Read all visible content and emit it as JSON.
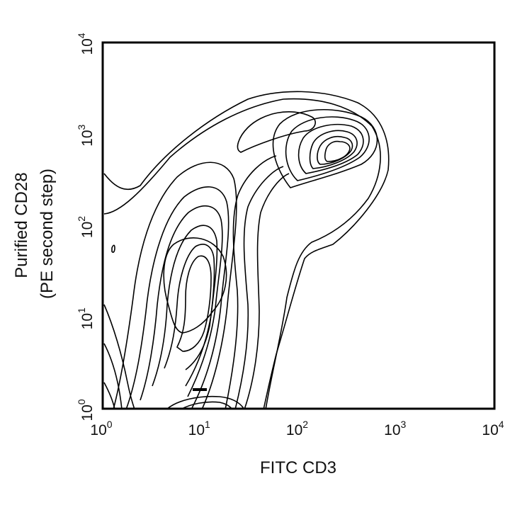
{
  "chart_data": {
    "type": "contour",
    "xlabel": "FITC CD3",
    "ylabel_line1": "Purified CD28",
    "ylabel_line2": "(PE second step)",
    "x_scale": "log",
    "y_scale": "log",
    "xlim": [
      1,
      10000
    ],
    "ylim": [
      1,
      10000
    ],
    "grid": false,
    "x_ticks": [
      {
        "base": "10",
        "exp": "0",
        "value": 1
      },
      {
        "base": "10",
        "exp": "1",
        "value": 10
      },
      {
        "base": "10",
        "exp": "2",
        "value": 100
      },
      {
        "base": "10",
        "exp": "3",
        "value": 1000
      },
      {
        "base": "10",
        "exp": "4",
        "value": 10000
      }
    ],
    "y_ticks": [
      {
        "base": "10",
        "exp": "0",
        "value": 1
      },
      {
        "base": "10",
        "exp": "1",
        "value": 10
      },
      {
        "base": "10",
        "exp": "2",
        "value": 100
      },
      {
        "base": "10",
        "exp": "3",
        "value": 1000
      },
      {
        "base": "10",
        "exp": "4",
        "value": 10000
      }
    ],
    "populations": [
      {
        "peak_x": 10,
        "peak_y": 25
      },
      {
        "peak_x": 300,
        "peak_y": 400
      }
    ]
  }
}
